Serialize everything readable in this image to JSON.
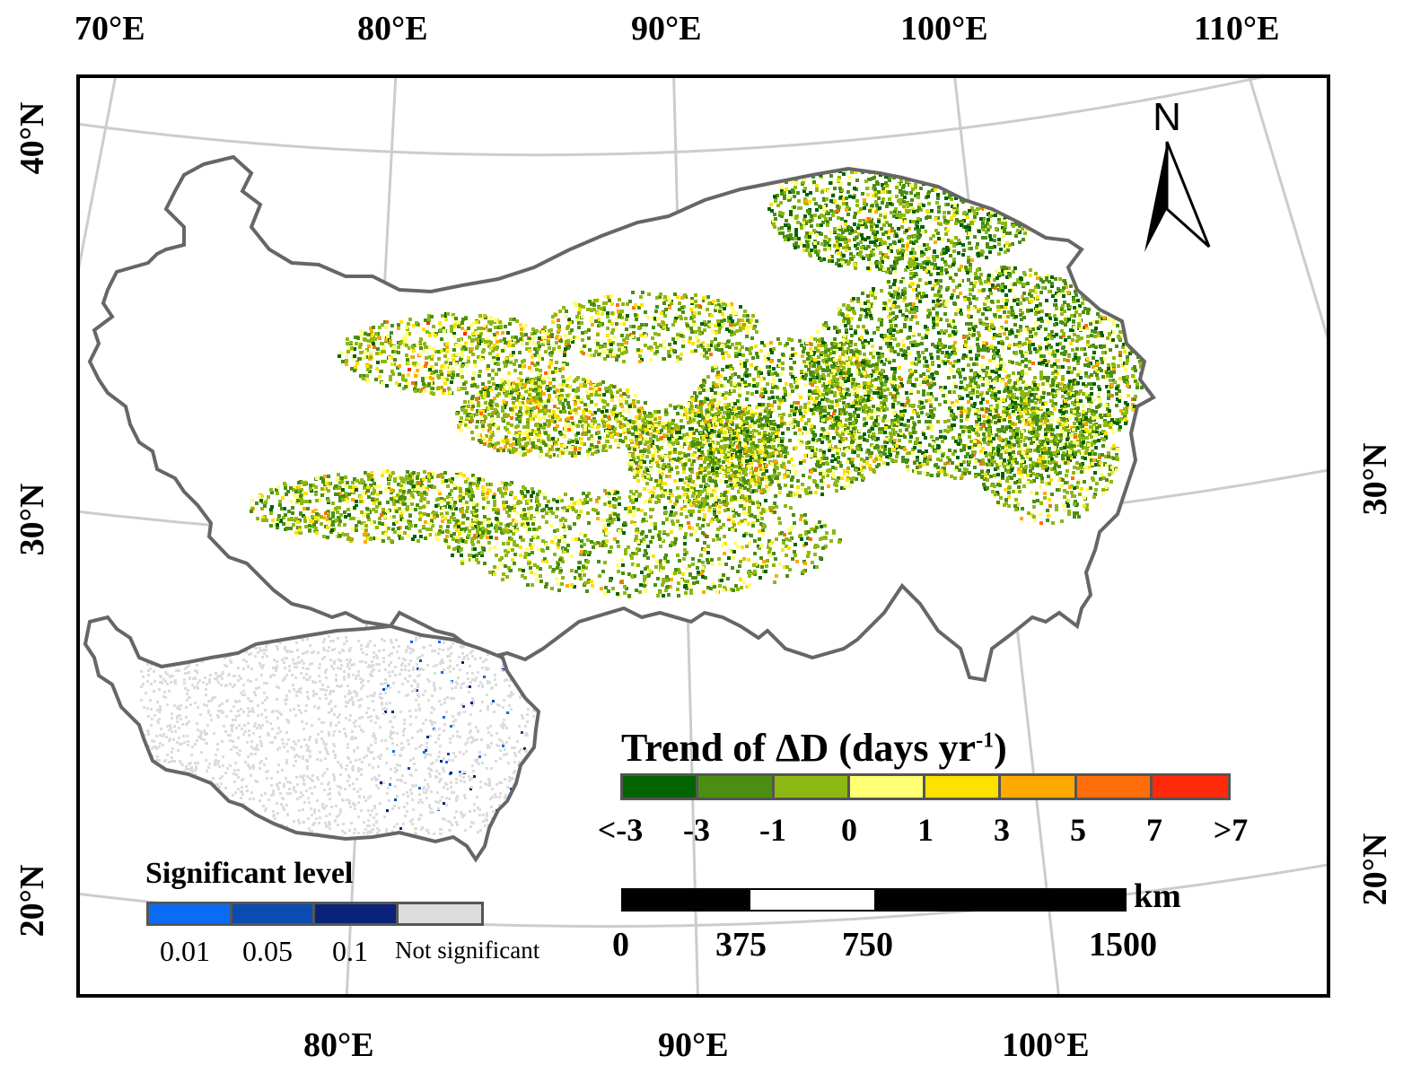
{
  "top_lon_labels": [
    "70°E",
    "80°E",
    "90°E",
    "100°E",
    "110°E"
  ],
  "bottom_lon_labels": [
    "80°E",
    "90°E",
    "100°E"
  ],
  "left_lat_labels": [
    "40°N",
    "30°N",
    "20°N"
  ],
  "right_lat_labels": [
    "30°N",
    "20°N"
  ],
  "north_arrow": {
    "label": "N",
    "icon": "north-arrow-icon"
  },
  "trend_legend": {
    "title_main": "Trend of ΔD (days yr",
    "title_sup": "-1",
    "title_end": ")",
    "colors": [
      "#006400",
      "#4a8f12",
      "#8db813",
      "#ffff73",
      "#ffe100",
      "#ffaa00",
      "#ff6e0a",
      "#ff2a0a"
    ],
    "ticks": [
      "<-3",
      "-3",
      "-1",
      "0",
      "1",
      "3",
      "5",
      "7",
      ">7"
    ]
  },
  "significance_legend": {
    "title": "Significant level",
    "colors": [
      "#0a6cf5",
      "#0a4cb0",
      "#0a2378",
      "#dcdcdc"
    ],
    "ticks": [
      "0.01",
      "0.05",
      "0.1",
      "Not significant"
    ]
  },
  "scale_bar": {
    "unit": "km",
    "ticks": [
      "0",
      "375",
      "750",
      "1500"
    ]
  }
}
